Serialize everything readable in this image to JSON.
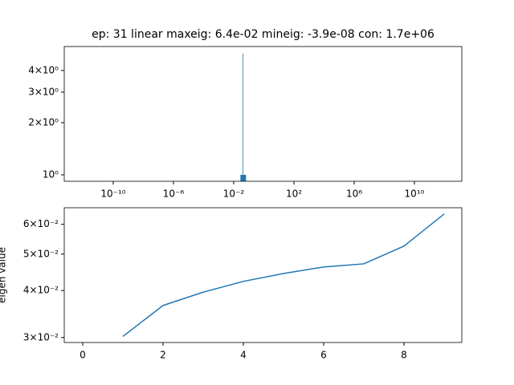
{
  "chart_data": [
    {
      "type": "histogram",
      "title": "ep: 31 linear maxeig: 6.4e-02 mineig: -3.9e-08 con: 1.7e+06",
      "bins": [
        0.028,
        0.039,
        0.041,
        0.066
      ],
      "values": [
        1,
        5,
        1
      ],
      "color": "#1f77b4",
      "xscale": "log",
      "yscale": "log",
      "xlim": [
        5.6e-14,
        14000000000000.0
      ],
      "xticks": [
        {
          "value": 1e-10,
          "label": "10⁻¹⁰"
        },
        {
          "value": 1e-06,
          "label": "10⁻⁶"
        },
        {
          "value": 0.01,
          "label": "10⁻²"
        },
        {
          "value": 100,
          "label": "10²"
        },
        {
          "value": 1000000.0,
          "label": "10⁶"
        },
        {
          "value": 10000000000.0,
          "label": "10¹⁰"
        }
      ],
      "ylim": [
        0.918,
        5.5
      ],
      "yticks": [
        {
          "value": 1,
          "label": "10⁰"
        },
        {
          "value": 2,
          "label": "2×10⁰"
        },
        {
          "value": 3,
          "label": "3×10⁰"
        },
        {
          "value": 4,
          "label": "4×10⁰"
        }
      ]
    },
    {
      "type": "line",
      "ylabel": "eigen value",
      "x": [
        0,
        1,
        2,
        3,
        4,
        5,
        6,
        7,
        8,
        9
      ],
      "values": [
        null,
        0.0302,
        0.0365,
        0.0396,
        0.0423,
        0.0444,
        0.0462,
        0.0471,
        0.0525,
        0.0639
      ],
      "color": "#1f77b4",
      "yscale": "log",
      "xlim": [
        -0.46,
        9.44
      ],
      "xticks": [
        0,
        2,
        4,
        6,
        8
      ],
      "ylim": [
        0.0291,
        0.0664
      ],
      "yticks": [
        {
          "value": 0.03,
          "label": "3×10⁻²"
        },
        {
          "value": 0.04,
          "label": "4×10⁻²"
        },
        {
          "value": 0.05,
          "label": "5×10⁻²"
        },
        {
          "value": 0.06,
          "label": "6×10⁻²"
        }
      ]
    }
  ]
}
